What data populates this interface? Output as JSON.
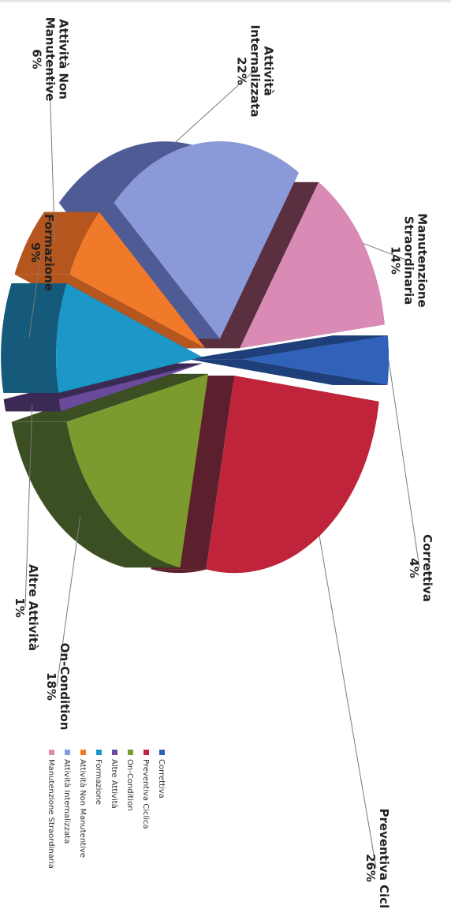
{
  "chart_data": {
    "type": "pie",
    "title": "",
    "slices": [
      {
        "label": [
          "Correttiva"
        ],
        "legend": "Correttiva",
        "pct": "4%",
        "value": 4,
        "color": "#2f62b8",
        "side": "#1f3f7a"
      },
      {
        "label": [
          "Preventiva Ciclica"
        ],
        "legend": "Preventiva Ciclica",
        "pct": "26%",
        "value": 26,
        "color": "#c0243a",
        "side": "#5c1f2e"
      },
      {
        "label": [
          "On-Condition"
        ],
        "legend": "On-Condition",
        "pct": "18%",
        "value": 18,
        "color": "#7c9a2e",
        "side": "#3c4f22"
      },
      {
        "label": [
          "Altre Attività"
        ],
        "legend": "Altre Attività",
        "pct": "1%",
        "value": 1,
        "color": "#6a4a9a",
        "side": "#3a2a55"
      },
      {
        "label": [
          "Formazione"
        ],
        "legend": "Formazione",
        "pct": "9%",
        "value": 9,
        "color": "#1b97c8",
        "side": "#155a7a"
      },
      {
        "label": [
          "Attività Non",
          "Manutentive"
        ],
        "legend": "Attività Non Manutentive",
        "pct": "6%",
        "value": 6,
        "color": "#f07a2a",
        "side": "#b5561f"
      },
      {
        "label": [
          "Attività",
          "Internalizzata"
        ],
        "legend": "Attività Internalizzata",
        "pct": "22%",
        "value": 22,
        "color": "#8a9ad8",
        "side": "#4f5b95"
      },
      {
        "label": [
          "Manutenzione",
          "Straordinaria"
        ],
        "legend": "Manutenzione Straordinaria",
        "pct": "14%",
        "value": 14,
        "color": "#d98bb6",
        "side": "#5a3040"
      }
    ]
  }
}
